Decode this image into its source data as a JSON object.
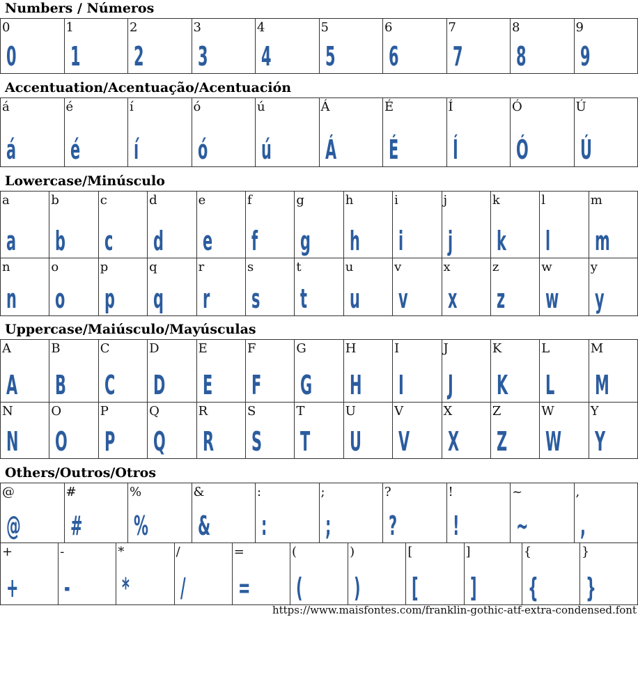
{
  "glyph_color": "#2b5c9e",
  "sections": [
    {
      "title": "Numbers / Números",
      "rows": [
        [
          "0",
          "1",
          "2",
          "3",
          "4",
          "5",
          "6",
          "7",
          "8",
          "9"
        ]
      ]
    },
    {
      "title": "Accentuation/Acentuação/Acentuación",
      "rows": [
        [
          "á",
          "é",
          "í",
          "ó",
          "ú",
          "Á",
          "É",
          "Í",
          "Ó",
          "Ú"
        ]
      ]
    },
    {
      "title": "Lowercase/Minúsculo",
      "rows": [
        [
          "a",
          "b",
          "c",
          "d",
          "e",
          "f",
          "g",
          "h",
          "i",
          "j",
          "k",
          "l",
          "m"
        ],
        [
          "n",
          "o",
          "p",
          "q",
          "r",
          "s",
          "t",
          "u",
          "v",
          "x",
          "z",
          "w",
          "y"
        ]
      ]
    },
    {
      "title": "Uppercase/Maiúsculo/Mayúsculas",
      "rows": [
        [
          "A",
          "B",
          "C",
          "D",
          "E",
          "F",
          "G",
          "H",
          "I",
          "J",
          "K",
          "L",
          "M"
        ],
        [
          "N",
          "O",
          "P",
          "Q",
          "R",
          "S",
          "T",
          "U",
          "V",
          "X",
          "Z",
          "W",
          "Y"
        ]
      ]
    },
    {
      "title": "Others/Outros/Otros",
      "rows": [
        [
          "@",
          "#",
          "%",
          "&",
          ":",
          ";",
          "?",
          "!",
          "~",
          ","
        ],
        [
          "+",
          "-",
          "*",
          "/",
          "=",
          "(",
          ")",
          "[",
          "]",
          "{",
          "}"
        ]
      ]
    }
  ],
  "footer_url": "https://www.maisfontes.com/franklin-gothic-atf-extra-condensed.font"
}
